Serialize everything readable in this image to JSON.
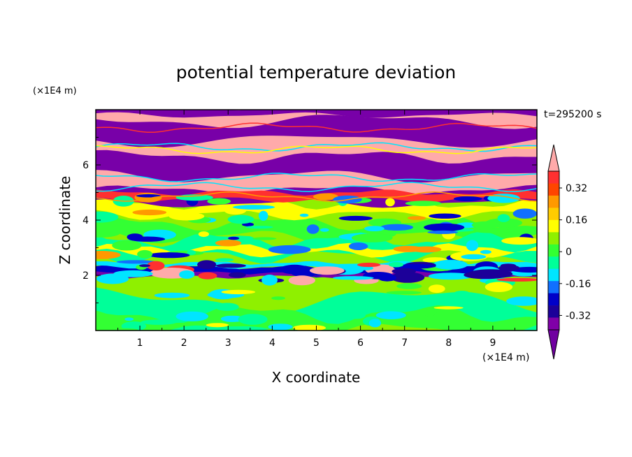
{
  "chart_data": {
    "type": "heatmap",
    "title": "potential temperature deviation",
    "xlabel": "X coordinate",
    "ylabel": "Z coordinate",
    "x_unit": "(×1E4 m)",
    "y_unit": "(×1E4 m)",
    "time_label": "t=295200 s",
    "xlim": [
      0,
      10
    ],
    "ylim": [
      0,
      8
    ],
    "x_ticks": [
      1,
      2,
      3,
      4,
      5,
      6,
      7,
      8,
      9
    ],
    "y_ticks": [
      2,
      4,
      6
    ],
    "colorbar": {
      "levels": [
        -0.44,
        -0.4,
        -0.32,
        -0.24,
        -0.16,
        -0.08,
        0,
        0.08,
        0.16,
        0.24,
        0.32,
        0.4
      ],
      "colors": [
        "#ffaaaa",
        "#ff3030",
        "#ff4500",
        "#ff9900",
        "#ffcc00",
        "#ffff00",
        "#8ff000",
        "#33ff33",
        "#00ff99",
        "#00e5ff",
        "#1070ff",
        "#0000c8",
        "#1c0099",
        "#8000a8",
        "#7000a0"
      ],
      "tick_labels": [
        "0.32",
        "0.16",
        "0",
        "-0.16",
        "-0.32"
      ],
      "tick_values": [
        0.32,
        0.16,
        0,
        -0.16,
        -0.32
      ],
      "extend": "both"
    },
    "bands": [
      {
        "z": 7.9,
        "value": "warm"
      },
      {
        "z": 7.3,
        "value": "cold"
      },
      {
        "z": 6.6,
        "value": "warm"
      },
      {
        "z": 6.0,
        "value": "cold"
      },
      {
        "z": 5.4,
        "value": "warm"
      },
      {
        "z": 4.9,
        "value": "cold"
      },
      {
        "z": 4.3,
        "value": "neutral"
      },
      {
        "z": 3.2,
        "value": "neutral"
      },
      {
        "z": 2.1,
        "value": "cold"
      },
      {
        "z": 1.0,
        "value": "neutral"
      }
    ],
    "grid": false
  }
}
